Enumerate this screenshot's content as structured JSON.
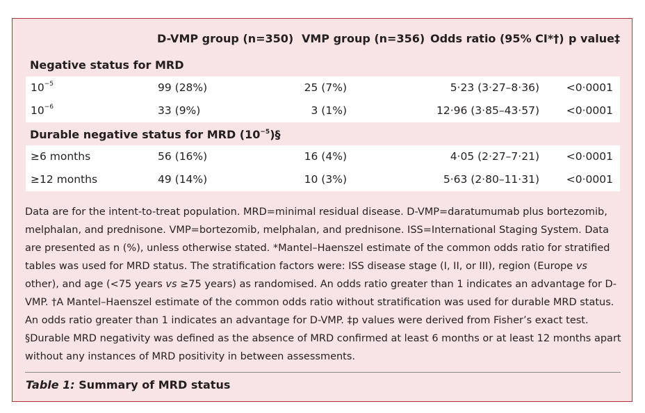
{
  "table": {
    "columns": [
      "D-VMP group (n=350)",
      "VMP group (n=356)",
      "Odds ratio (95% CI*†)",
      "p value‡"
    ],
    "sections": [
      {
        "title": "Negative status for MRD",
        "title_sup": "",
        "title_suffix": "",
        "rows": [
          {
            "label_base": "10",
            "label_sup": "−5",
            "label_rest": "",
            "dvmp": "99 (28%)",
            "vmp": "25 (7%)",
            "or": "5·23 (3·27–8·36)",
            "p": "<0·0001"
          },
          {
            "label_base": "10",
            "label_sup": "−6",
            "label_rest": "",
            "dvmp": "33 (9%)",
            "vmp": "3 (1%)",
            "or": "12·96 (3·85–43·57)",
            "p": "<0·0001"
          }
        ]
      },
      {
        "title": "Durable negative status for MRD (10",
        "title_sup": "−5",
        "title_suffix": ")§",
        "rows": [
          {
            "label_base": "≥6 months",
            "label_sup": "",
            "label_rest": "",
            "dvmp": "56 (16%)",
            "vmp": "16 (4%)",
            "or": "4·05 (2·27–7·21)",
            "p": "<0·0001"
          },
          {
            "label_base": "≥12 months",
            "label_sup": "",
            "label_rest": "",
            "dvmp": "49 (14%)",
            "vmp": "10 (3%)",
            "or": "5·63 (2·80–11·31)",
            "p": "<0·0001"
          }
        ]
      }
    ]
  },
  "footnote": {
    "p1": "Data are for the intent-to-treat population. MRD=minimal residual disease. D-VMP=daratumumab plus bortezomib, melphalan, and prednisone. VMP=bortezomib, melphalan, and prednisone. ISS=International Staging System. Data are presented as n (%), unless otherwise stated. *Mantel–Haenszel estimate of the common odds ratio for stratified tables was used for MRD status. The stratification factors were: ISS disease stage (I, II, or III), region (Europe ",
    "vs1": "vs",
    "p2": " other), and age (<75 years ",
    "vs2": "vs",
    "p3": " ≥75 years) as randomised. An odds ratio greater than 1 indicates an advantage for D-VMP. †A Mantel–Haenszel estimate of the common odds ratio without stratification was used for durable MRD status. An odds ratio greater than 1 indicates an advantage for D-VMP. ‡p values were derived from Fisher’s exact test. §Durable MRD negativity was defined as the absence of MRD confirmed at least 6 months or at least 12 months apart without any instances of MRD positivity in between assessments."
  },
  "caption": {
    "label": "Table 1:",
    "text": " Summary of MRD status"
  }
}
